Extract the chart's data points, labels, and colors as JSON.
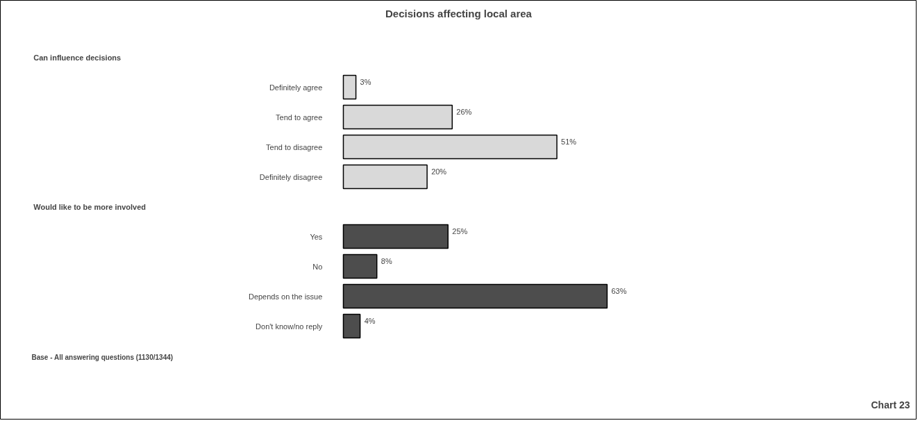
{
  "chart_data": {
    "type": "bar",
    "orientation": "horizontal",
    "title": "Decisions affecting local area",
    "categories": [
      null,
      "Definitely agree",
      "Tend to agree",
      "Tend to disagree",
      "Definitely disagree",
      null,
      "Yes",
      "No",
      "Depends on the issue",
      "Don't know/no reply"
    ],
    "series": [
      {
        "color": "#d9d9d9",
        "values": [
          null,
          3,
          26,
          51,
          20,
          null,
          null,
          null,
          null,
          null
        ],
        "value_labels": [
          null,
          "3%",
          "26%",
          "51%",
          "20%",
          null,
          null,
          null,
          null,
          null
        ]
      },
      {
        "color": "#4d4d4d",
        "values": [
          null,
          null,
          null,
          null,
          null,
          null,
          25,
          8,
          63,
          4
        ],
        "value_labels": [
          null,
          null,
          null,
          null,
          null,
          null,
          "25%",
          "8%",
          "63%",
          "4%"
        ]
      }
    ],
    "annotations": [
      "Can influence decisions",
      "Would like to be more involved",
      "Base - All answering questions (1130/1344)",
      "Chart 23"
    ]
  }
}
